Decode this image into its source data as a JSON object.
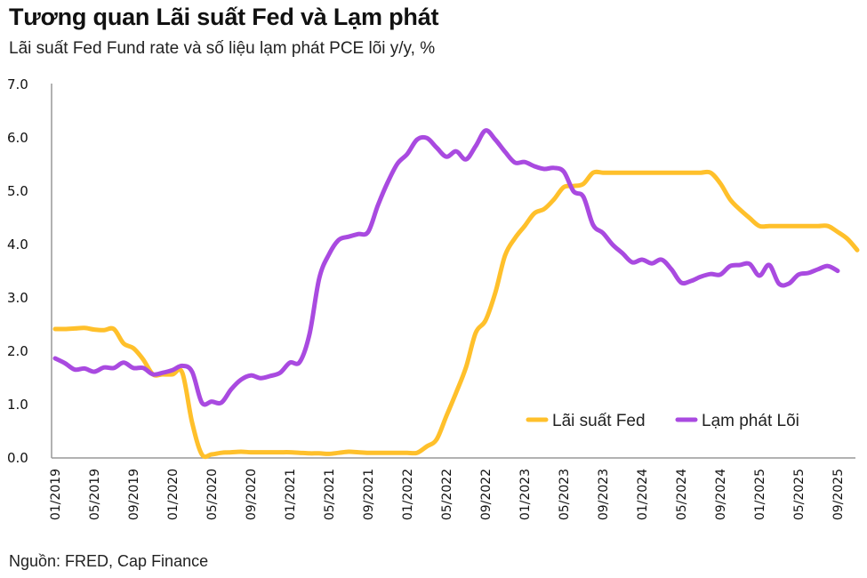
{
  "header": {
    "title": "Tương quan Lãi suất Fed và Lạm phát",
    "subtitle": "Lãi suất Fed Fund rate và số liệu lạm phát PCE lõi y/y, %"
  },
  "footer": {
    "source": "Nguồn: FRED, Cap Finance"
  },
  "colors": {
    "fed": "#FFC02B",
    "pce": "#A94AE0",
    "axis": "#999999"
  },
  "chart_data": {
    "type": "line",
    "title": "Tương quan Lãi suất Fed và Lạm phát",
    "subtitle": "Lãi suất Fed Fund rate và số liệu lạm phát PCE lõi y/y, %",
    "xlabel": "",
    "ylabel": "",
    "ylim": [
      0,
      7
    ],
    "yticks": [
      "0.0",
      "1.0",
      "2.0",
      "3.0",
      "4.0",
      "5.0",
      "6.0",
      "7.0"
    ],
    "x_start": "01/2019",
    "x_frequency": "monthly",
    "xticks": [
      "01/2019",
      "05/2019",
      "09/2019",
      "01/2020",
      "05/2020",
      "09/2020",
      "01/2021",
      "05/2021",
      "09/2021",
      "01/2022",
      "05/2022",
      "09/2022",
      "01/2023",
      "05/2023",
      "09/2023",
      "01/2024",
      "05/2024",
      "09/2024",
      "01/2025",
      "05/2025",
      "09/2025"
    ],
    "grid": false,
    "legend_position": "bottom-right",
    "series": [
      {
        "name": "Lãi suất Fed",
        "values": [
          2.4,
          2.4,
          2.41,
          2.42,
          2.39,
          2.38,
          2.4,
          2.13,
          2.04,
          1.83,
          1.55,
          1.55,
          1.55,
          1.58,
          0.65,
          0.05,
          0.05,
          0.08,
          0.09,
          0.1,
          0.09,
          0.09,
          0.09,
          0.09,
          0.09,
          0.08,
          0.07,
          0.07,
          0.06,
          0.08,
          0.1,
          0.09,
          0.08,
          0.08,
          0.08,
          0.08,
          0.08,
          0.08,
          0.2,
          0.33,
          0.77,
          1.21,
          1.68,
          2.33,
          2.56,
          3.08,
          3.78,
          4.1,
          4.33,
          4.57,
          4.65,
          4.83,
          5.06,
          5.08,
          5.12,
          5.33,
          5.33,
          5.33,
          5.33,
          5.33,
          5.33,
          5.33,
          5.33,
          5.33,
          5.33,
          5.33,
          5.33,
          5.33,
          5.13,
          4.83,
          4.64,
          4.48,
          4.33,
          4.33,
          4.33,
          4.33,
          4.33,
          4.33,
          4.33,
          4.33,
          4.22,
          4.09,
          3.88
        ]
      },
      {
        "name": "Lạm phát Lõi",
        "values": [
          1.85,
          1.76,
          1.64,
          1.66,
          1.6,
          1.68,
          1.67,
          1.77,
          1.67,
          1.67,
          1.55,
          1.58,
          1.63,
          1.71,
          1.6,
          1.02,
          1.04,
          1.02,
          1.27,
          1.45,
          1.53,
          1.48,
          1.52,
          1.58,
          1.77,
          1.78,
          2.3,
          3.35,
          3.8,
          4.07,
          4.13,
          4.18,
          4.22,
          4.72,
          5.15,
          5.5,
          5.68,
          5.95,
          5.98,
          5.8,
          5.63,
          5.73,
          5.58,
          5.83,
          6.12,
          5.95,
          5.72,
          5.52,
          5.53,
          5.45,
          5.4,
          5.42,
          5.35,
          4.98,
          4.88,
          4.35,
          4.2,
          3.98,
          3.82,
          3.65,
          3.7,
          3.63,
          3.7,
          3.52,
          3.27,
          3.3,
          3.38,
          3.43,
          3.42,
          3.58,
          3.6,
          3.62,
          3.4,
          3.6,
          3.25,
          3.25,
          3.42,
          3.45,
          3.52,
          3.58,
          3.49
        ]
      }
    ]
  }
}
